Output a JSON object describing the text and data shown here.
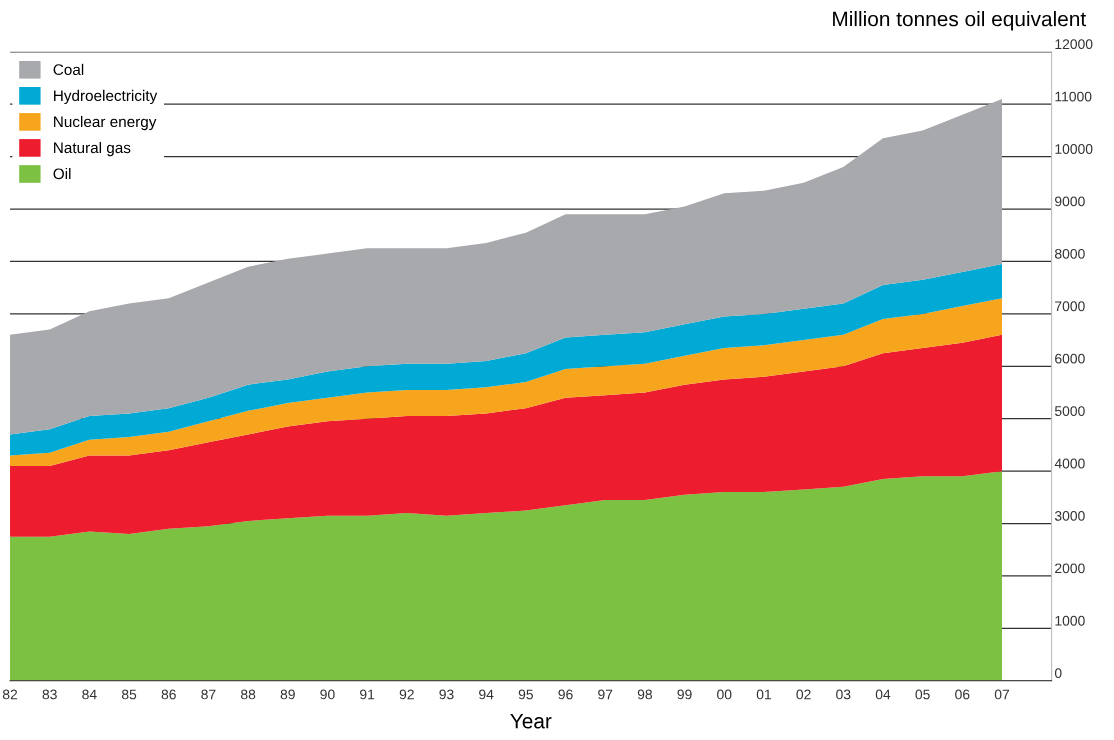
{
  "chart_data": {
    "type": "area",
    "stacked": true,
    "ylabel": "Million tonnes oil equivalent",
    "xlabel": "Year",
    "categories": [
      "82",
      "83",
      "84",
      "85",
      "86",
      "87",
      "88",
      "89",
      "90",
      "91",
      "92",
      "93",
      "94",
      "95",
      "96",
      "97",
      "98",
      "99",
      "00",
      "01",
      "02",
      "03",
      "04",
      "05",
      "06",
      "07"
    ],
    "series": [
      {
        "name": "Oil",
        "color": "#7dc142",
        "values": [
          2750,
          2750,
          2850,
          2800,
          2900,
          2950,
          3050,
          3100,
          3150,
          3150,
          3200,
          3150,
          3200,
          3250,
          3350,
          3450,
          3450,
          3550,
          3600,
          3600,
          3650,
          3700,
          3850,
          3900,
          3900,
          4000
        ]
      },
      {
        "name": "Natural gas",
        "color": "#ed1c2e",
        "values": [
          1350,
          1350,
          1450,
          1500,
          1500,
          1600,
          1650,
          1750,
          1800,
          1850,
          1850,
          1900,
          1900,
          1950,
          2050,
          2000,
          2050,
          2100,
          2150,
          2200,
          2250,
          2300,
          2400,
          2450,
          2550,
          2600
        ]
      },
      {
        "name": "Nuclear energy",
        "color": "#f7a51c",
        "values": [
          200,
          250,
          300,
          350,
          350,
          400,
          450,
          450,
          450,
          500,
          500,
          500,
          500,
          500,
          550,
          550,
          550,
          550,
          600,
          600,
          600,
          600,
          650,
          650,
          700,
          700
        ]
      },
      {
        "name": "Hydroelectricity",
        "color": "#00aad4",
        "values": [
          400,
          450,
          450,
          450,
          450,
          450,
          500,
          450,
          500,
          500,
          500,
          500,
          500,
          550,
          600,
          600,
          600,
          600,
          600,
          600,
          600,
          600,
          650,
          650,
          650,
          650
        ]
      },
      {
        "name": "Coal",
        "color": "#a7a9ac",
        "values": [
          1900,
          1900,
          2000,
          2100,
          2100,
          2200,
          2250,
          2300,
          2250,
          2250,
          2200,
          2200,
          2250,
          2300,
          2350,
          2300,
          2250,
          2250,
          2350,
          2350,
          2400,
          2600,
          2800,
          2850,
          3000,
          3150
        ]
      }
    ],
    "ylim": [
      0,
      12000
    ],
    "yticks": [
      0,
      1000,
      2000,
      3000,
      4000,
      5000,
      6000,
      7000,
      8000,
      9000,
      10000,
      11000,
      12000
    ],
    "grid": "y",
    "legend": "top left"
  }
}
